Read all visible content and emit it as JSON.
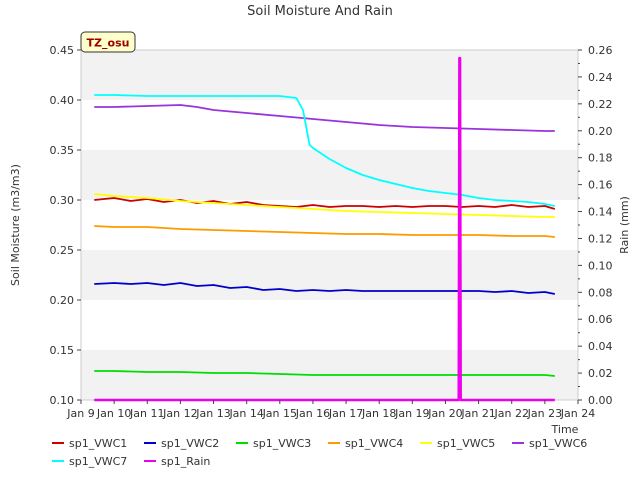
{
  "chart_data": {
    "type": "line",
    "title": "Soil Moisture And Rain",
    "xlabel": "Time",
    "ylabel": "Soil Moisture (m3/m3)",
    "y2label": "Rain (mm)",
    "site_badge": "TZ_osu",
    "x_ticks": [
      "Jan 9",
      "Jan 10",
      "Jan 11",
      "Jan 12",
      "Jan 13",
      "Jan 14",
      "Jan 15",
      "Jan 16",
      "Jan 17",
      "Jan 18",
      "Jan 19",
      "Jan 20",
      "Jan 21",
      "Jan 22",
      "Jan 23",
      "Jan 24"
    ],
    "xlim": [
      9,
      24
    ],
    "ylim": [
      0.1,
      0.45
    ],
    "y_ticks": [
      "0.10",
      "0.15",
      "0.20",
      "0.25",
      "0.30",
      "0.35",
      "0.40",
      "0.45"
    ],
    "y2lim": [
      0.0,
      0.26
    ],
    "y2_ticks": [
      "0.00",
      "0.02",
      "0.04",
      "0.06",
      "0.08",
      "0.10",
      "0.12",
      "0.14",
      "0.16",
      "0.18",
      "0.20",
      "0.22",
      "0.24",
      "0.26"
    ],
    "grid": "horizontal bands",
    "legend_position": "bottom",
    "series": [
      {
        "name": "sp1_VWC1",
        "color": "#cc0000",
        "axis": "left",
        "x": [
          9.4,
          10.0,
          10.5,
          11.0,
          11.5,
          12.0,
          12.5,
          13.0,
          13.5,
          14.0,
          14.5,
          15.0,
          15.5,
          16.0,
          16.5,
          17.0,
          17.5,
          18.0,
          18.5,
          19.0,
          19.5,
          20.0,
          20.5,
          21.0,
          21.5,
          22.0,
          22.5,
          23.0,
          23.3
        ],
        "y": [
          0.3,
          0.302,
          0.299,
          0.301,
          0.298,
          0.3,
          0.297,
          0.299,
          0.296,
          0.298,
          0.295,
          0.294,
          0.293,
          0.295,
          0.293,
          0.294,
          0.294,
          0.293,
          0.294,
          0.293,
          0.294,
          0.294,
          0.293,
          0.294,
          0.293,
          0.295,
          0.293,
          0.294,
          0.291
        ]
      },
      {
        "name": "sp1_VWC2",
        "color": "#0000cc",
        "axis": "left",
        "x": [
          9.4,
          10.0,
          10.5,
          11.0,
          11.5,
          12.0,
          12.5,
          13.0,
          13.5,
          14.0,
          14.5,
          15.0,
          15.5,
          16.0,
          16.5,
          17.0,
          17.5,
          18.0,
          18.5,
          19.0,
          19.5,
          20.0,
          20.5,
          21.0,
          21.5,
          22.0,
          22.5,
          23.0,
          23.3
        ],
        "y": [
          0.216,
          0.217,
          0.216,
          0.217,
          0.215,
          0.217,
          0.214,
          0.215,
          0.212,
          0.213,
          0.21,
          0.211,
          0.209,
          0.21,
          0.209,
          0.21,
          0.209,
          0.209,
          0.209,
          0.209,
          0.209,
          0.209,
          0.209,
          0.209,
          0.208,
          0.209,
          0.207,
          0.208,
          0.206
        ]
      },
      {
        "name": "sp1_VWC3",
        "color": "#00dd00",
        "axis": "left",
        "x": [
          9.4,
          10.0,
          11.0,
          12.0,
          13.0,
          14.0,
          15.0,
          16.0,
          17.0,
          18.0,
          19.0,
          20.0,
          21.0,
          22.0,
          23.0,
          23.3
        ],
        "y": [
          0.129,
          0.129,
          0.128,
          0.128,
          0.127,
          0.127,
          0.126,
          0.125,
          0.125,
          0.125,
          0.125,
          0.125,
          0.125,
          0.125,
          0.125,
          0.124
        ]
      },
      {
        "name": "sp1_VWC4",
        "color": "#ff9900",
        "axis": "left",
        "x": [
          9.4,
          10.0,
          11.0,
          12.0,
          13.0,
          14.0,
          15.0,
          16.0,
          17.0,
          18.0,
          19.0,
          20.0,
          21.0,
          22.0,
          23.0,
          23.3
        ],
        "y": [
          0.274,
          0.273,
          0.273,
          0.271,
          0.27,
          0.269,
          0.268,
          0.267,
          0.266,
          0.266,
          0.265,
          0.265,
          0.265,
          0.264,
          0.264,
          0.263
        ]
      },
      {
        "name": "sp1_VWC5",
        "color": "#ffff00",
        "axis": "left",
        "x": [
          9.4,
          10.0,
          11.0,
          12.0,
          13.0,
          14.0,
          15.0,
          16.0,
          17.0,
          18.0,
          19.0,
          20.0,
          21.0,
          22.0,
          23.0,
          23.3
        ],
        "y": [
          0.306,
          0.304,
          0.302,
          0.299,
          0.297,
          0.295,
          0.293,
          0.291,
          0.289,
          0.288,
          0.287,
          0.286,
          0.285,
          0.284,
          0.283,
          0.283
        ]
      },
      {
        "name": "sp1_VWC6",
        "color": "#9933dd",
        "axis": "left",
        "x": [
          9.4,
          10.0,
          11.0,
          12.0,
          12.5,
          13.0,
          14.0,
          15.0,
          16.0,
          17.0,
          18.0,
          19.0,
          20.0,
          21.0,
          22.0,
          23.0,
          23.3
        ],
        "y": [
          0.393,
          0.393,
          0.394,
          0.395,
          0.393,
          0.39,
          0.387,
          0.384,
          0.381,
          0.378,
          0.375,
          0.373,
          0.372,
          0.371,
          0.37,
          0.369,
          0.369
        ]
      },
      {
        "name": "sp1_VWC7",
        "color": "#00ffff",
        "axis": "left",
        "x": [
          9.4,
          10.0,
          11.0,
          12.0,
          13.0,
          14.0,
          15.0,
          15.5,
          15.7,
          15.9,
          16.0,
          16.5,
          17.0,
          17.5,
          18.0,
          18.5,
          19.0,
          19.5,
          20.0,
          20.5,
          21.0,
          21.5,
          22.0,
          22.5,
          23.0,
          23.3
        ],
        "y": [
          0.405,
          0.405,
          0.404,
          0.404,
          0.404,
          0.404,
          0.404,
          0.402,
          0.39,
          0.355,
          0.352,
          0.341,
          0.332,
          0.325,
          0.32,
          0.316,
          0.312,
          0.309,
          0.307,
          0.305,
          0.302,
          0.3,
          0.299,
          0.298,
          0.296,
          0.294
        ]
      },
      {
        "name": "sp1_Rain",
        "color": "#ee00ee",
        "axis": "right",
        "x": [
          9.4,
          20.4,
          20.42,
          20.44,
          20.46,
          23.3
        ],
        "y": [
          0.0,
          0.0,
          0.254,
          0.254,
          0.0,
          0.0
        ]
      }
    ]
  }
}
